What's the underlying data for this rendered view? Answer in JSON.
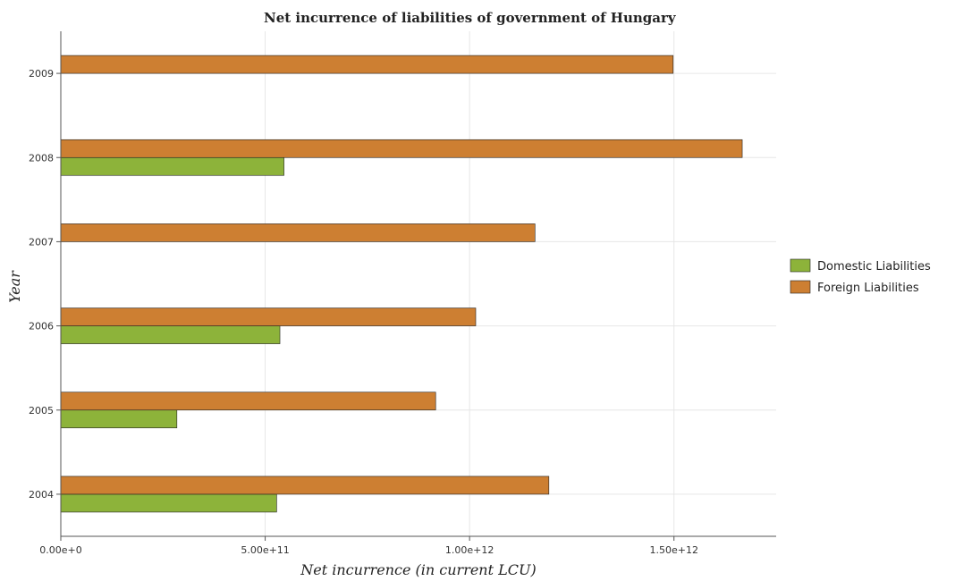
{
  "chart_data": {
    "type": "bar",
    "orientation": "horizontal",
    "title": "Net incurrence of liabilities of government of Hungary",
    "xlabel": "Net incurrence (in current LCU)",
    "ylabel": "Year",
    "categories": [
      "2004",
      "2005",
      "2006",
      "2007",
      "2008",
      "2009"
    ],
    "series": [
      {
        "name": "Domestic Liabilities",
        "color": "#8db33a",
        "values": [
          528000000000,
          284000000000,
          536000000000,
          0,
          546000000000,
          0
        ]
      },
      {
        "name": "Foreign Liabilities",
        "color": "#cd7f32",
        "values": [
          1194000000000,
          917000000000,
          1015000000000,
          1160000000000,
          1667000000000,
          1498000000000
        ]
      }
    ],
    "xlim": [
      0,
      1750000000000
    ],
    "xticks": [
      0,
      500000000000,
      1000000000000,
      1500000000000
    ],
    "xtick_labels": [
      "0.00e+0",
      "5.00e+11",
      "1.00e+12",
      "1.50e+12"
    ],
    "grid": true,
    "legend_position": "right"
  }
}
